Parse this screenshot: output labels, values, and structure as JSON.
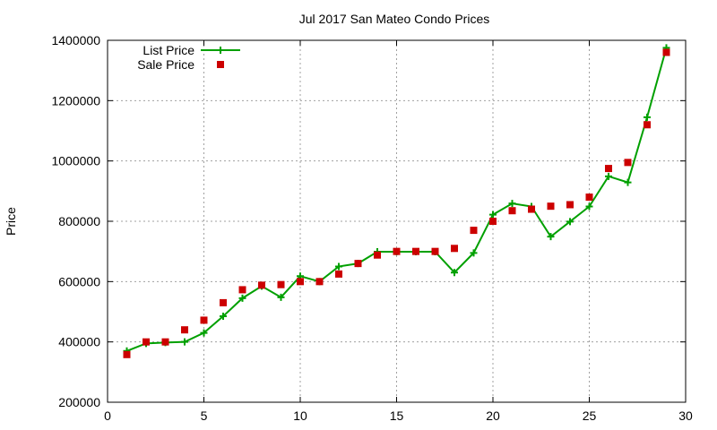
{
  "chart_data": {
    "type": "line",
    "title": "Jul 2017 San Mateo Condo Prices",
    "xlabel": "",
    "ylabel": "Price",
    "xlim": [
      0,
      30
    ],
    "ylim": [
      200000,
      1400000
    ],
    "xticks": [
      0,
      5,
      10,
      15,
      20,
      25,
      30
    ],
    "yticks": [
      200000,
      400000,
      600000,
      800000,
      1000000,
      1200000,
      1400000
    ],
    "grid": true,
    "legend_position": "top-left",
    "x": [
      1,
      2,
      3,
      4,
      5,
      6,
      7,
      8,
      9,
      10,
      11,
      12,
      13,
      14,
      15,
      16,
      17,
      18,
      19,
      20,
      21,
      22,
      23,
      24,
      25,
      26,
      27,
      28,
      29
    ],
    "series": [
      {
        "name": "List Price",
        "style": "linespoints",
        "color": "#00a000",
        "values": [
          370000,
          395000,
          398000,
          400000,
          430000,
          485000,
          545000,
          585000,
          548000,
          618000,
          600000,
          650000,
          660000,
          699000,
          699000,
          699000,
          699000,
          630000,
          695000,
          822000,
          859000,
          849000,
          749000,
          799000,
          849000,
          949000,
          929000,
          1145000,
          1375000
        ]
      },
      {
        "name": "Sale Price",
        "style": "points",
        "color": "#cc0000",
        "values": [
          358000,
          400000,
          400000,
          440000,
          472000,
          530000,
          573000,
          588000,
          590000,
          600000,
          600000,
          625000,
          660000,
          688000,
          700000,
          700000,
          700000,
          710000,
          770000,
          800000,
          835000,
          840000,
          850000,
          855000,
          880000,
          975000,
          995000,
          1120000,
          1360000
        ]
      }
    ]
  }
}
